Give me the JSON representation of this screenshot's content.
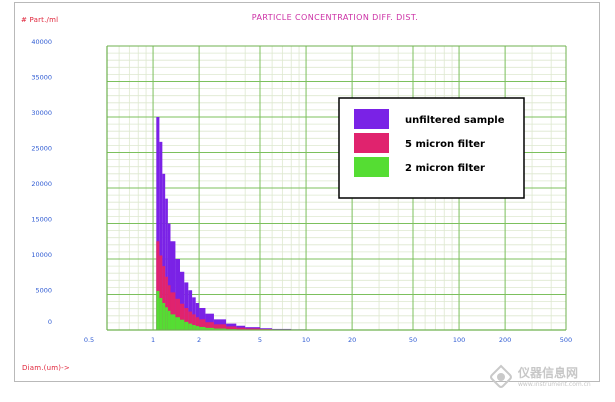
{
  "chart_data": {
    "type": "bar",
    "title": "PARTICLE CONCENTRATION DIFF. DIST.",
    "ylabel": "# Part./ml",
    "xlabel": "Diam.(um)->",
    "x_scale": "log",
    "xlim": [
      0.5,
      500
    ],
    "ylim": [
      0,
      40000
    ],
    "x_ticks": [
      "0.5",
      "1",
      "2",
      "5",
      "10",
      "20",
      "50",
      "100",
      "200",
      "500"
    ],
    "y_ticks": [
      "0",
      "5000",
      "10000",
      "15000",
      "20000",
      "25000",
      "30000",
      "35000",
      "40000"
    ],
    "legend_position": "top-right",
    "grid": true,
    "x": [
      1.05,
      1.1,
      1.15,
      1.2,
      1.25,
      1.3,
      1.4,
      1.5,
      1.6,
      1.7,
      1.8,
      1.9,
      2.0,
      2.2,
      2.5,
      3.0,
      3.5,
      4.0,
      5.0,
      6.0,
      8.0,
      10.0,
      15.0,
      20.0,
      30.0,
      50.0
    ],
    "series": [
      {
        "name": "unfiltered sample",
        "color": "#7a22e6",
        "values": [
          30000,
          26500,
          22000,
          18500,
          15000,
          12500,
          10000,
          8200,
          6700,
          5600,
          4600,
          3800,
          3100,
          2300,
          1500,
          900,
          600,
          400,
          250,
          150,
          90,
          60,
          40,
          25,
          15,
          8
        ]
      },
      {
        "name": "5 micron filter",
        "color": "#e0236e",
        "values": [
          12500,
          10500,
          9000,
          7500,
          6300,
          5300,
          4400,
          3700,
          3100,
          2600,
          2200,
          1800,
          1500,
          1100,
          800,
          500,
          330,
          230,
          140,
          80,
          50,
          30,
          20,
          12,
          8,
          4
        ]
      },
      {
        "name": "2 micron filter",
        "color": "#55dd33",
        "values": [
          5500,
          4500,
          3800,
          3200,
          2700,
          2200,
          1800,
          1450,
          1150,
          900,
          700,
          550,
          430,
          300,
          200,
          120,
          80,
          55,
          35,
          20,
          12,
          8,
          5,
          3,
          2,
          1
        ]
      }
    ]
  },
  "watermark": {
    "name": "仪器信息网",
    "url": "www.instrument.com.cn"
  }
}
